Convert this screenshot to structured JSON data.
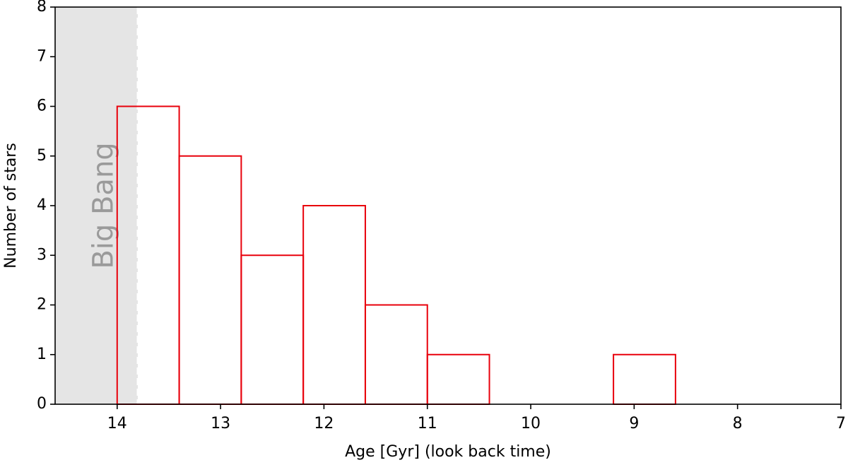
{
  "chart_data": {
    "type": "histogram",
    "xlabel": "Age [Gyr] (look back time)",
    "ylabel": "Number of stars",
    "bins": [
      14.0,
      13.4,
      12.8,
      12.2,
      11.6,
      11.0,
      10.4,
      9.8,
      9.2,
      8.6
    ],
    "counts": [
      6,
      5,
      3,
      4,
      2,
      1,
      0,
      0,
      1
    ],
    "color": "#e8000b",
    "xlim": [
      14.6,
      7
    ],
    "xticks": [
      14,
      13,
      12,
      11,
      10,
      9,
      8,
      7
    ],
    "ylim": [
      0,
      8
    ],
    "yticks": [
      0,
      1,
      2,
      3,
      4,
      5,
      6,
      7,
      8
    ],
    "big_bang": {
      "label": "Big Bang",
      "age": 13.8,
      "color": "#e5e5e5"
    }
  }
}
